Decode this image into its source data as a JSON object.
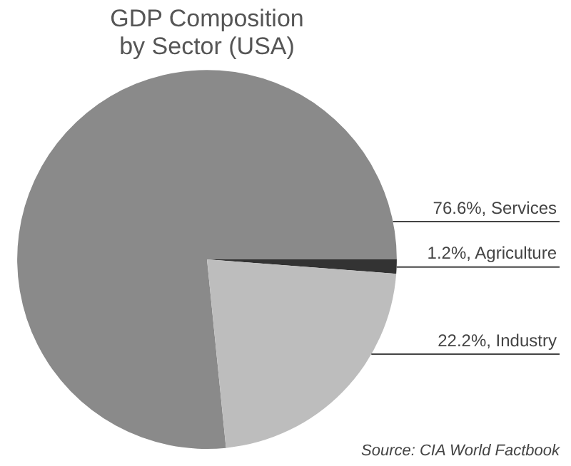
{
  "chart_data": {
    "type": "pie",
    "title": "GDP Composition\nby Sector (USA)",
    "categories": [
      "Services",
      "Agriculture",
      "Industry"
    ],
    "values": [
      76.6,
      1.2,
      22.2
    ],
    "value_labels": [
      "76.6%",
      "1.2%",
      "22.2%"
    ],
    "colors": [
      "#8a8a8a",
      "#333333",
      "#bdbdbd"
    ],
    "legend": false,
    "annotations": [
      "Source: CIA World Factbook"
    ]
  }
}
